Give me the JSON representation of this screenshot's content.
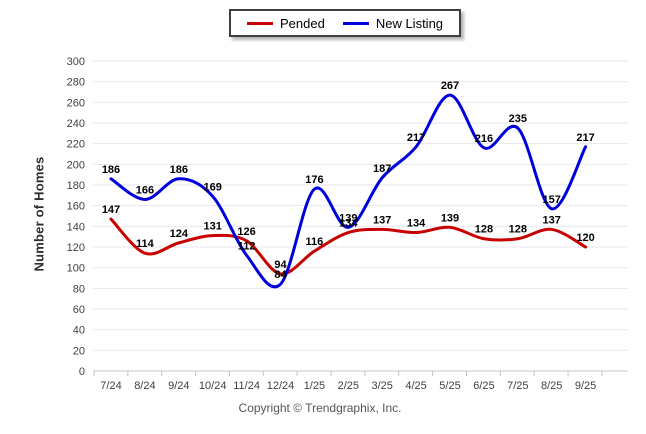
{
  "legend": {
    "items": [
      {
        "label": "Pended",
        "color": "#c80000"
      },
      {
        "label": "New Listing",
        "color": "#0000dd"
      }
    ]
  },
  "footer": {
    "copyright": "Copyright © Trendgraphix, Inc."
  },
  "chart_data": {
    "type": "line",
    "title": "",
    "xlabel": "",
    "ylabel": "Number of Homes",
    "categories": [
      "7/24",
      "8/24",
      "9/24",
      "10/24",
      "11/24",
      "12/24",
      "1/25",
      "2/25",
      "3/25",
      "4/25",
      "5/25",
      "6/25",
      "7/25",
      "8/25",
      "9/25"
    ],
    "series": [
      {
        "name": "Pended",
        "color": "#c80000",
        "values": [
          147,
          114,
          124,
          131,
          126,
          94,
          116,
          134,
          137,
          134,
          139,
          128,
          128,
          137,
          120
        ]
      },
      {
        "name": "New Listing",
        "color": "#0000dd",
        "values": [
          186,
          166,
          186,
          169,
          112,
          84,
          176,
          139,
          187,
          217,
          267,
          216,
          235,
          157,
          217
        ]
      }
    ],
    "ylim": [
      0,
      300
    ],
    "yticks": [
      0,
      20,
      40,
      60,
      80,
      100,
      120,
      140,
      160,
      180,
      200,
      220,
      240,
      260,
      280,
      300
    ],
    "grid": "horizontal",
    "grid_color": "#e7e7ef",
    "axis_color": "#c3c3cc",
    "legend_position": "top-center",
    "line_smoothing": "spline",
    "data_labels": "above-points"
  }
}
